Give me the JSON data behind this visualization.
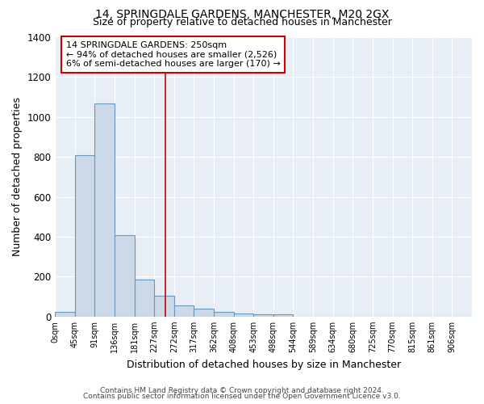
{
  "title1": "14, SPRINGDALE GARDENS, MANCHESTER, M20 2GX",
  "title2": "Size of property relative to detached houses in Manchester",
  "xlabel": "Distribution of detached houses by size in Manchester",
  "ylabel": "Number of detached properties",
  "bin_labels": [
    "0sqm",
    "45sqm",
    "91sqm",
    "136sqm",
    "181sqm",
    "227sqm",
    "272sqm",
    "317sqm",
    "362sqm",
    "408sqm",
    "453sqm",
    "498sqm",
    "544sqm",
    "589sqm",
    "634sqm",
    "680sqm",
    "725sqm",
    "770sqm",
    "815sqm",
    "861sqm",
    "906sqm"
  ],
  "bar_values": [
    25,
    810,
    1070,
    410,
    185,
    105,
    55,
    38,
    22,
    15,
    10,
    10,
    0,
    0,
    0,
    0,
    0,
    0,
    0,
    0,
    0
  ],
  "bar_color": "#ccd9e8",
  "bar_edge_color": "#6699bb",
  "property_line_x": 5.556,
  "property_line_color": "#cc0000",
  "annotation_text": "14 SPRINGDALE GARDENS: 250sqm\n← 94% of detached houses are smaller (2,526)\n6% of semi-detached houses are larger (170) →",
  "annotation_box_color": "#cc0000",
  "ylim": [
    0,
    1400
  ],
  "yticks": [
    0,
    200,
    400,
    600,
    800,
    1000,
    1200,
    1400
  ],
  "background_color": "#e8eef5",
  "grid_color": "#ffffff",
  "footer1": "Contains HM Land Registry data © Crown copyright and database right 2024.",
  "footer2": "Contains public sector information licensed under the Open Government Licence v3.0.",
  "num_bins": 21
}
